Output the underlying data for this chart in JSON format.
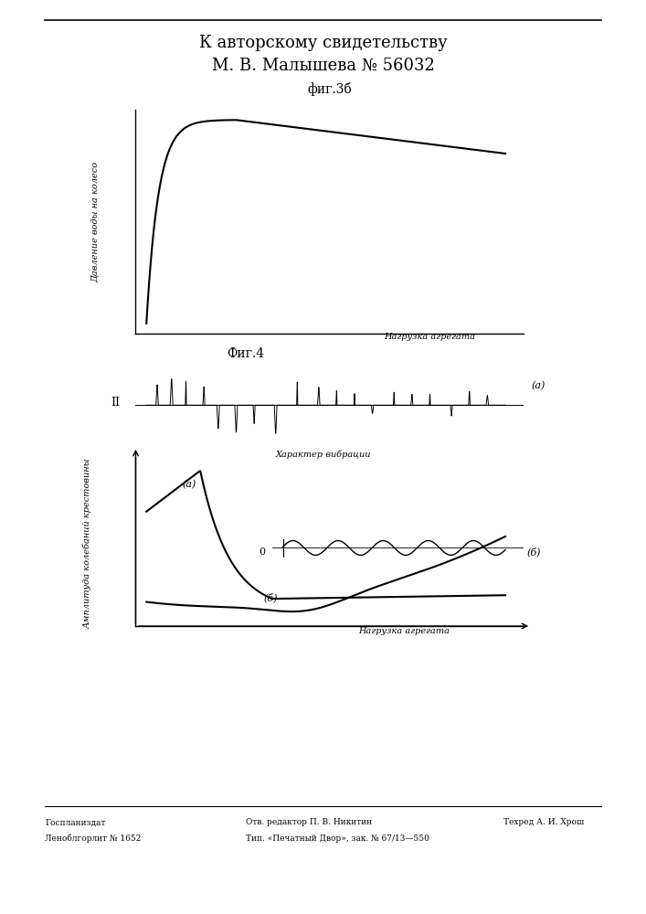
{
  "title_line1": "К авторскому свидетельству",
  "title_line2": "М. В. Малышева № 56032",
  "fig3b_title": "фиг.3б",
  "fig4_title": "Фиг.4",
  "fig3b_ylabel": "Давление воды на колесо",
  "fig3b_xlabel": "Нагрузка агрегата",
  "fig4_ylabel": "Амплитуда колебаний крестовины",
  "fig4_xlabel": "Нагрузка агрегата",
  "fig4_char_label": "Характер вибрации",
  "label_a": "(а)",
  "label_b": "(б)",
  "label_II": "II",
  "label_b_curve": "(б)",
  "label_a_curve": "(а)",
  "label_0": "0",
  "footer_left1": "Госпланиздат",
  "footer_left2": "Леноблгорлит № 1652",
  "footer_mid1": "Отв. редактор П. В. Никитин",
  "footer_mid2": "Тип. «Печатный Двор», зак. № 67/13—550",
  "footer_right": "Техред А. И. Хрош",
  "bg_color": "#ffffff",
  "line_color": "#000000"
}
